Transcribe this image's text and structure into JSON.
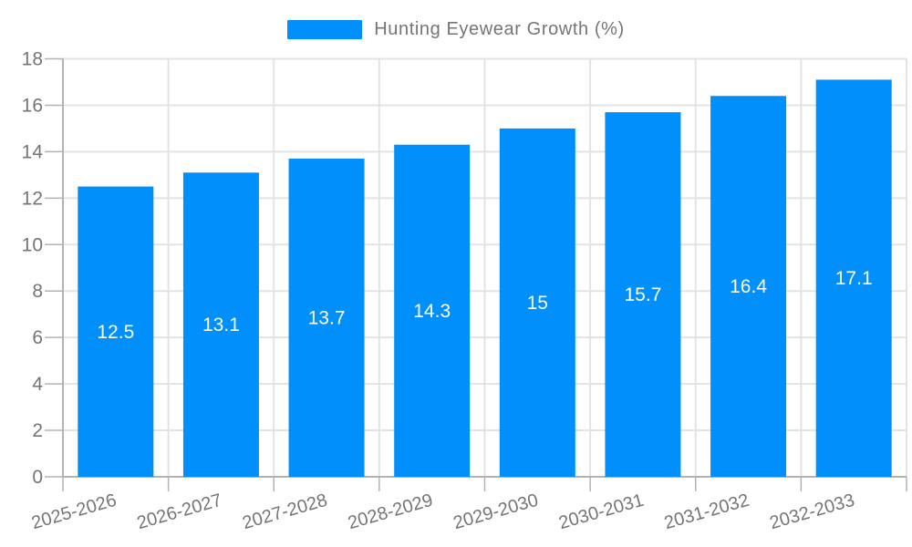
{
  "legend": {
    "position": "top",
    "items": [
      {
        "label": "Hunting Eyewear Growth (%)",
        "color": "#008FFB"
      }
    ]
  },
  "chart_data": {
    "type": "bar",
    "title": "Hunting Eyewear Growth (%)",
    "categories": [
      "2025-2026",
      "2026-2027",
      "2027-2028",
      "2028-2029",
      "2029-2030",
      "2030-2031",
      "2031-2032",
      "2032-2033"
    ],
    "series": [
      {
        "name": "Hunting Eyewear Growth (%)",
        "values": [
          12.5,
          13.1,
          13.7,
          14.3,
          15,
          15.7,
          16.4,
          17.1
        ]
      }
    ],
    "value_labels": [
      "12.5",
      "13.1",
      "13.7",
      "14.3",
      "15",
      "15.7",
      "16.4",
      "17.1"
    ],
    "xlabel": "",
    "ylabel": "",
    "ylim": [
      0,
      18
    ],
    "ytick_step": 2,
    "yticks": [
      0,
      2,
      4,
      6,
      8,
      10,
      12,
      14,
      16,
      18
    ],
    "grid": true,
    "legend_position": "top",
    "colors": {
      "bar": "#008FFB",
      "value_label": "#FFFFFF",
      "axis_label": "#757575",
      "gridline": "#E3E3E3",
      "axis_line": "#B3B3B3"
    }
  }
}
